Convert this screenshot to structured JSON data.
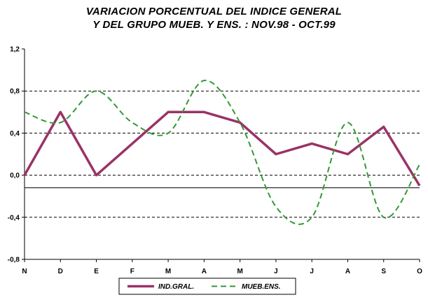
{
  "chart_data": {
    "type": "line",
    "title_lines": [
      "VARIACION PORCENTUAL DEL INDICE GENERAL",
      "Y DEL GRUPO MUEB. Y ENS. : NOV.98 - OCT.99"
    ],
    "categories": [
      "N",
      "D",
      "E",
      "F",
      "M",
      "A",
      "M",
      "J",
      "J",
      "A",
      "S",
      "O"
    ],
    "y_ticks": [
      "1,2",
      "0,8",
      "0,4",
      "0,0",
      "-0,4",
      "-0,8"
    ],
    "y_tick_values": [
      1.2,
      0.8,
      0.4,
      0.0,
      -0.4,
      -0.8
    ],
    "ylim": [
      -0.8,
      1.2
    ],
    "grid": "dashed horizontal at 0.8, 0.4, 0.0, -0.4",
    "reference_line": -0.12,
    "legend_position": "bottom-center",
    "series": [
      {
        "name": "IND.GRAL.",
        "color": "#993366",
        "style": "solid",
        "values": [
          0.0,
          0.6,
          0.0,
          0.3,
          0.6,
          0.6,
          0.5,
          0.2,
          0.3,
          0.2,
          0.46,
          -0.1
        ]
      },
      {
        "name": "MUEB.ENS.",
        "color": "#339933",
        "style": "dashed",
        "values": [
          0.6,
          0.5,
          0.8,
          0.5,
          0.4,
          0.9,
          0.5,
          -0.3,
          -0.4,
          0.5,
          -0.4,
          0.1
        ]
      }
    ]
  }
}
